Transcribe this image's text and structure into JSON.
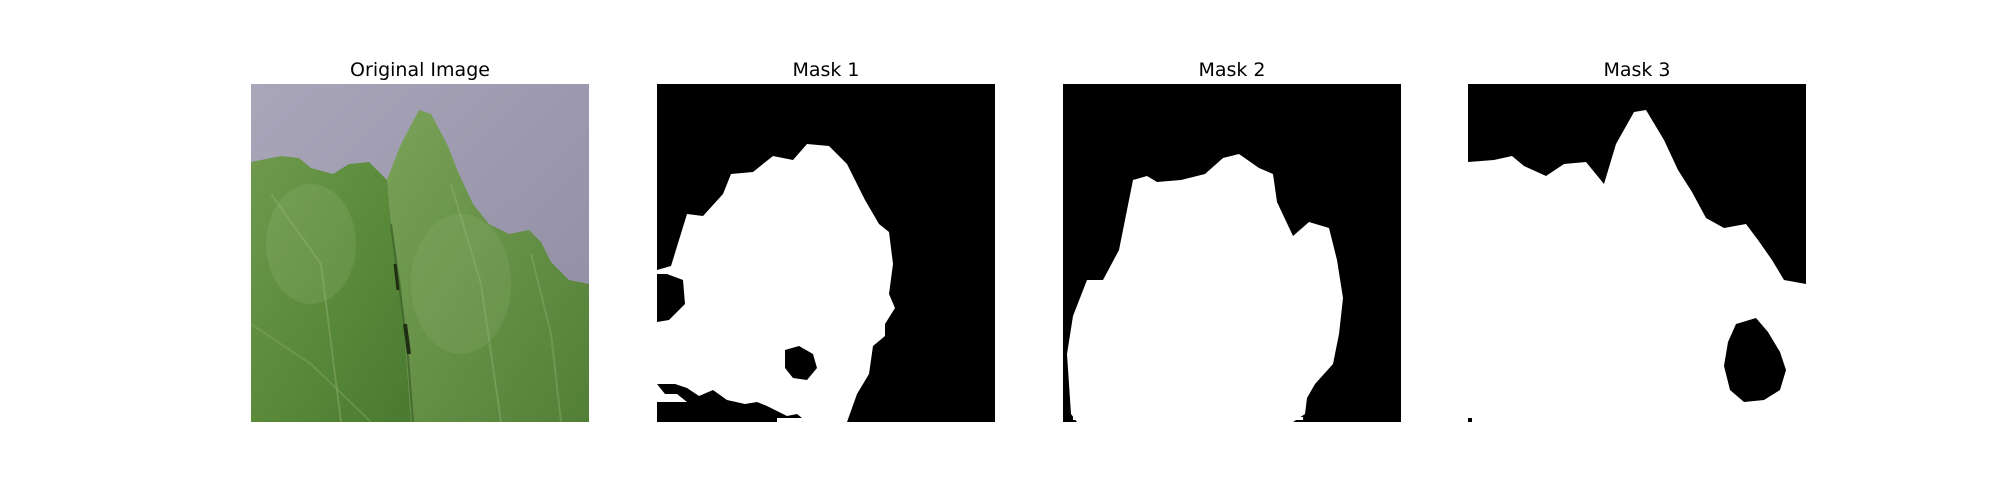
{
  "figure": {
    "panels": [
      {
        "title": "Original Image"
      },
      {
        "title": "Mask 1"
      },
      {
        "title": "Mask 2"
      },
      {
        "title": "Mask 3"
      }
    ]
  },
  "colors": {
    "background_gray": "#9d9aae",
    "leaf_green": "#5e8a3f",
    "leaf_dark": "#3f6a2a",
    "leaf_light": "#8fb071",
    "mask_black": "#000000",
    "mask_white": "#ffffff"
  }
}
